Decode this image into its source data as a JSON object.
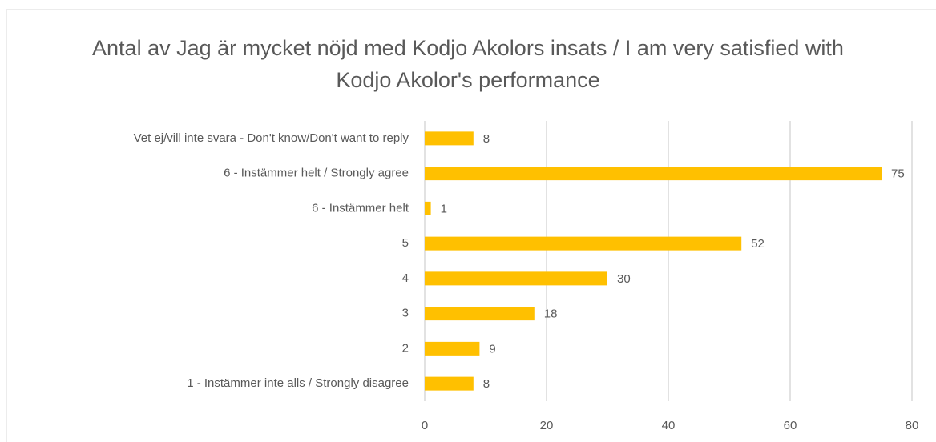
{
  "chart_data": {
    "type": "bar",
    "orientation": "horizontal",
    "title": "Antal av Jag är mycket nöjd med Kodjo Akolors insats / I am very satisfied with Kodjo Akolor's performance",
    "categories": [
      "Vet ej/vill inte svara - Don't know/Don't want to reply",
      "6 - Instämmer helt / Strongly agree",
      "6 - Instämmer helt",
      "5",
      "4",
      "3",
      "2",
      "1 - Instämmer inte alls / Strongly disagree"
    ],
    "values": [
      8,
      75,
      1,
      52,
      30,
      18,
      9,
      8
    ],
    "color": "#ffc000",
    "xlim": [
      0,
      80
    ],
    "xticks": [
      0,
      20,
      40,
      60,
      80
    ],
    "grid": true
  }
}
